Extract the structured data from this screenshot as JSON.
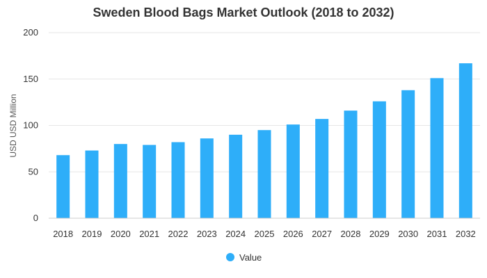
{
  "chart_data": {
    "type": "bar",
    "title": "Sweden Blood Bags Market Outlook (2018 to 2032)",
    "xlabel": "",
    "ylabel": "USD USD Million",
    "ylim": [
      0,
      200
    ],
    "yticks": [
      0,
      50,
      100,
      150,
      200
    ],
    "grid": true,
    "legend_position": "bottom",
    "categories": [
      "2018",
      "2019",
      "2020",
      "2021",
      "2022",
      "2023",
      "2024",
      "2025",
      "2026",
      "2027",
      "2028",
      "2029",
      "2030",
      "2031",
      "2032"
    ],
    "series": [
      {
        "name": "Value",
        "color": "#2EAEF9",
        "values": [
          68,
          73,
          80,
          79,
          82,
          86,
          90,
          95,
          101,
          107,
          116,
          126,
          138,
          151,
          167
        ]
      }
    ]
  }
}
